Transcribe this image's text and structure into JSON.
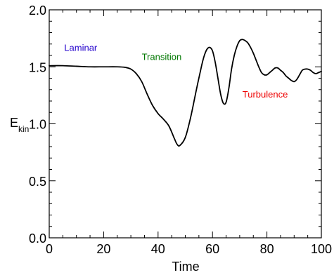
{
  "chart_data": {
    "type": "line",
    "title": "",
    "xlabel": "Time",
    "ylabel": "E",
    "ylabel_subscript": "kin",
    "xlim": [
      0,
      100
    ],
    "ylim": [
      0.0,
      2.0
    ],
    "grid": false,
    "x_ticks": [
      0,
      20,
      40,
      60,
      80,
      100
    ],
    "x_tick_labels": [
      "0",
      "20",
      "40",
      "60",
      "80",
      "100"
    ],
    "y_ticks": [
      0.0,
      0.5,
      1.0,
      1.5,
      2.0
    ],
    "y_tick_labels": [
      "0.0",
      "0.5",
      "1.0",
      "1.5",
      "2.0"
    ],
    "series": [
      {
        "color": "#000000",
        "x": [
          0,
          5,
          10,
          15,
          20,
          25,
          28,
          30,
          32,
          34,
          36,
          38,
          40,
          42,
          44,
          46,
          47,
          48,
          50,
          52,
          54,
          56,
          57,
          58,
          59,
          60,
          61,
          62,
          63,
          64,
          65,
          66,
          67,
          68,
          69,
          70,
          71,
          72,
          73,
          74,
          75,
          76,
          77,
          78,
          79,
          80,
          81,
          82,
          83,
          84,
          85,
          86,
          87,
          88,
          89,
          90,
          91,
          92,
          93,
          94,
          95,
          96,
          97,
          98,
          99,
          100
        ],
        "y": [
          1.51,
          1.51,
          1.505,
          1.5,
          1.5,
          1.5,
          1.495,
          1.48,
          1.44,
          1.37,
          1.26,
          1.16,
          1.09,
          1.04,
          0.98,
          0.87,
          0.82,
          0.81,
          0.88,
          1.06,
          1.29,
          1.51,
          1.6,
          1.655,
          1.67,
          1.64,
          1.54,
          1.4,
          1.26,
          1.18,
          1.19,
          1.31,
          1.48,
          1.6,
          1.68,
          1.73,
          1.74,
          1.73,
          1.71,
          1.67,
          1.62,
          1.56,
          1.5,
          1.45,
          1.43,
          1.43,
          1.45,
          1.47,
          1.49,
          1.49,
          1.47,
          1.45,
          1.42,
          1.4,
          1.38,
          1.37,
          1.39,
          1.43,
          1.47,
          1.48,
          1.48,
          1.47,
          1.45,
          1.44,
          1.45,
          1.46
        ]
      }
    ],
    "annotations": [
      {
        "text": "Laminar",
        "x": 5.5,
        "y": 1.64,
        "color": "#2200cc"
      },
      {
        "text": "Transition",
        "x": 34,
        "y": 1.56,
        "color": "#007700"
      },
      {
        "text": "Turbulence",
        "x": 71,
        "y": 1.23,
        "color": "#ee0000"
      }
    ]
  }
}
